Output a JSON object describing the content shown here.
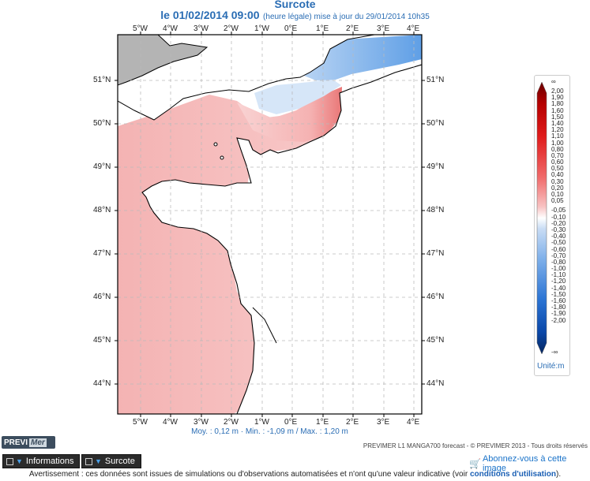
{
  "header": {
    "title": "Surcote",
    "date": "le 01/02/2014 09:00",
    "note": "(heure légale) mise à jour du 29/01/2014 10h35"
  },
  "map": {
    "lon_ticks": [
      "5°W",
      "4°W",
      "3°W",
      "2°W",
      "1°W",
      "0°E",
      "1°E",
      "2°E",
      "3°E",
      "4°E"
    ],
    "lat_ticks": [
      "51°N",
      "50°N",
      "49°N",
      "48°N",
      "47°N",
      "46°N",
      "45°N",
      "44°N"
    ],
    "colors": {
      "land": "#ffffff",
      "frame_land": "#b3b3b3",
      "positive": "#f6b8b8",
      "positive_strong": "#ee7f7f",
      "negative": "#6ea8e8",
      "negative_light": "#d3e4f7"
    }
  },
  "legend": {
    "top_symbol": "∞",
    "bottom_symbol": "-∞",
    "labels": [
      "2,00",
      "1,90",
      "1,80",
      "1,60",
      "1,50",
      "1,40",
      "1,20",
      "1,10",
      "1,00",
      "0,80",
      "0,70",
      "0,60",
      "0,50",
      "0,40",
      "0,30",
      "0,20",
      "0,10",
      "0,05",
      "-0,05",
      "-0,10",
      "-0,20",
      "-0,30",
      "-0,40",
      "-0,50",
      "-0,60",
      "-0,70",
      "-0,80",
      "-1,00",
      "-1,10",
      "-1,20",
      "-1,40",
      "-1,50",
      "-1,60",
      "-1,80",
      "-1,90",
      "-2,00"
    ],
    "unit": "Unité:m"
  },
  "stats": "Moy. : 0,12 m    ·    Min. : -1,09 m / Max. : 1,20 m",
  "brand": {
    "prefix": "PREVI",
    "suffix": "Mer"
  },
  "credit": "PREVIMER L1 MANGA700 forecast - © PREVIMER 2013 - Tous droits réservés",
  "tabs": {
    "informations": "Informations",
    "surcote": "Surcote"
  },
  "subscribe": "Abonnez-vous à cette image",
  "disclaimer": {
    "text": "Avertissement : ces données sont issues de simulations ou d'observations automatisées et n'ont qu'une valeur indicative (voir ",
    "link": "conditions d'utilisation",
    "tail": ")."
  }
}
